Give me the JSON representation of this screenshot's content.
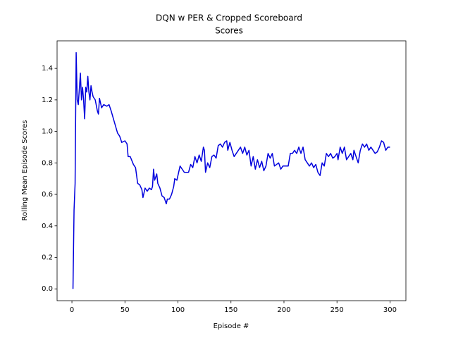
{
  "chart_data": {
    "type": "line",
    "title": "DQN w PER & Cropped Scoreboard",
    "subtitle": "Scores",
    "x_label": "Episode #",
    "y_label": "Rolling Mean Episode Scores",
    "xlim": [
      -14,
      315
    ],
    "ylim": [
      -0.075,
      1.575
    ],
    "xticks": [
      0,
      50,
      100,
      150,
      200,
      250,
      300
    ],
    "yticks": [
      {
        "value": 0,
        "label": "0.0"
      },
      0.2,
      0.4,
      0.6,
      0.8,
      {
        "value": 1,
        "label": "1.0"
      },
      1.2,
      1.4
    ],
    "grid": false,
    "series": [
      {
        "color": "#0000dd",
        "x": [
          1,
          2,
          3,
          4,
          5,
          6,
          8,
          9,
          10,
          11,
          12,
          13,
          14,
          15,
          16,
          17,
          18,
          19,
          20,
          22,
          24,
          25,
          26,
          28,
          30,
          33,
          35,
          37,
          40,
          43,
          45,
          47,
          50,
          52,
          53,
          55,
          58,
          60,
          62,
          64,
          66,
          67,
          69,
          71,
          73,
          75,
          76,
          77,
          78,
          80,
          81,
          83,
          85,
          87,
          88,
          89,
          90,
          92,
          94,
          96,
          97,
          99,
          100,
          102,
          104,
          106,
          110,
          112,
          114,
          116,
          118,
          120,
          122,
          124,
          125,
          126,
          128,
          130,
          132,
          134,
          136,
          138,
          140,
          142,
          144,
          146,
          147,
          149,
          151,
          153,
          155,
          157,
          159,
          161,
          163,
          165,
          167,
          169,
          171,
          173,
          175,
          177,
          179,
          181,
          183,
          185,
          187,
          189,
          191,
          193,
          195,
          197,
          199,
          204,
          206,
          208,
          210,
          212,
          214,
          216,
          218,
          220,
          222,
          224,
          226,
          228,
          230,
          232,
          234,
          236,
          238,
          240,
          242,
          244,
          246,
          248,
          250,
          251,
          253,
          255,
          257,
          259,
          261,
          263,
          265,
          266,
          268,
          270,
          272,
          274,
          276,
          278,
          280,
          282,
          284,
          286,
          288,
          290,
          292,
          294,
          296,
          298,
          300
        ],
        "values": [
          0.0,
          0.5,
          0.67,
          1.5,
          1.2,
          1.17,
          1.37,
          1.2,
          1.28,
          1.2,
          1.08,
          1.28,
          1.25,
          1.35,
          1.25,
          1.2,
          1.29,
          1.25,
          1.22,
          1.2,
          1.13,
          1.11,
          1.21,
          1.15,
          1.17,
          1.16,
          1.17,
          1.13,
          1.06,
          0.99,
          0.97,
          0.93,
          0.94,
          0.92,
          0.84,
          0.84,
          0.79,
          0.77,
          0.67,
          0.66,
          0.63,
          0.58,
          0.64,
          0.62,
          0.64,
          0.63,
          0.65,
          0.76,
          0.69,
          0.73,
          0.67,
          0.64,
          0.59,
          0.58,
          0.56,
          0.54,
          0.57,
          0.57,
          0.6,
          0.65,
          0.7,
          0.69,
          0.72,
          0.78,
          0.76,
          0.74,
          0.74,
          0.79,
          0.77,
          0.84,
          0.8,
          0.85,
          0.81,
          0.9,
          0.88,
          0.74,
          0.8,
          0.77,
          0.84,
          0.85,
          0.83,
          0.91,
          0.92,
          0.9,
          0.93,
          0.94,
          0.88,
          0.93,
          0.88,
          0.84,
          0.86,
          0.88,
          0.9,
          0.86,
          0.9,
          0.85,
          0.88,
          0.78,
          0.84,
          0.76,
          0.82,
          0.77,
          0.81,
          0.75,
          0.78,
          0.86,
          0.83,
          0.86,
          0.78,
          0.79,
          0.8,
          0.76,
          0.78,
          0.78,
          0.86,
          0.86,
          0.88,
          0.86,
          0.9,
          0.86,
          0.9,
          0.82,
          0.8,
          0.78,
          0.8,
          0.77,
          0.79,
          0.74,
          0.72,
          0.8,
          0.78,
          0.86,
          0.84,
          0.86,
          0.83,
          0.84,
          0.86,
          0.82,
          0.9,
          0.86,
          0.9,
          0.82,
          0.84,
          0.86,
          0.82,
          0.88,
          0.84,
          0.8,
          0.88,
          0.92,
          0.9,
          0.92,
          0.88,
          0.9,
          0.88,
          0.86,
          0.87,
          0.9,
          0.94,
          0.93,
          0.88,
          0.9,
          0.9
        ]
      }
    ]
  }
}
